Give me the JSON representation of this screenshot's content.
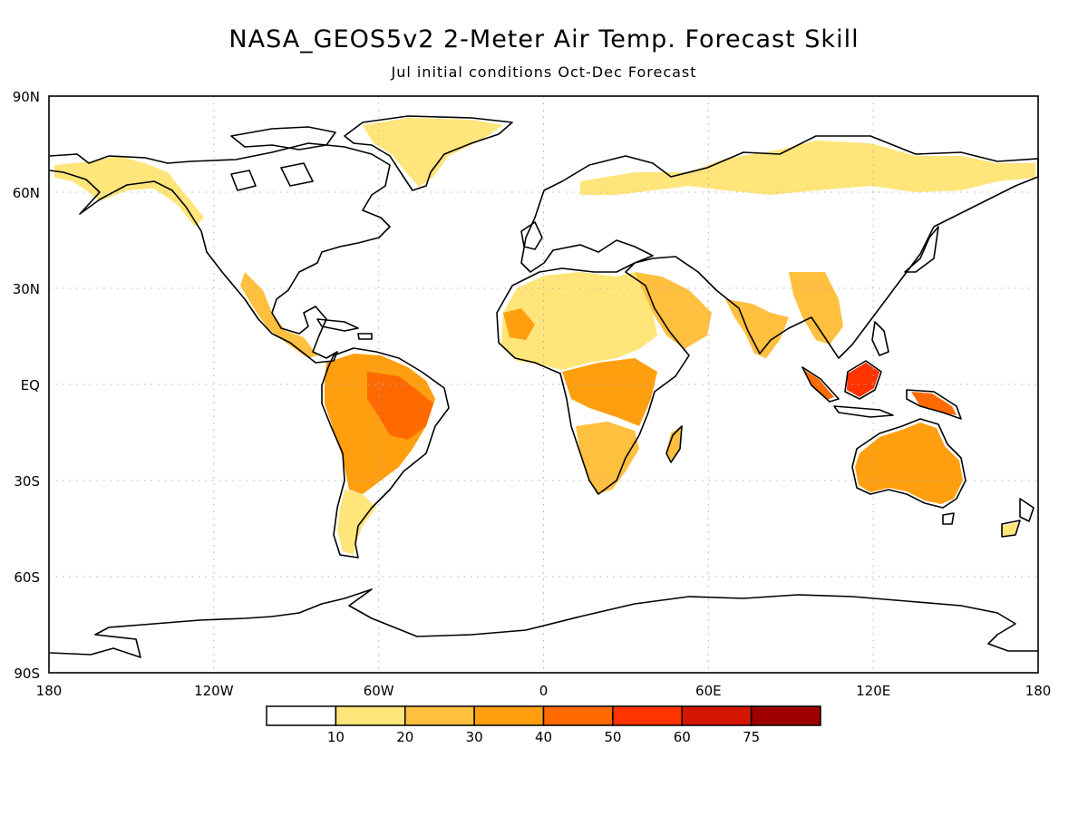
{
  "title": "NASA_GEOS5v2 2-Meter Air Temp. Forecast Skill",
  "subtitle": "Jul initial conditions  Oct-Dec Forecast",
  "map": {
    "lat_labels": [
      "90N",
      "60N",
      "30N",
      "EQ",
      "30S",
      "60S",
      "90S"
    ],
    "lon_labels": [
      "180",
      "120W",
      "60W",
      "0",
      "60E",
      "120E",
      "180"
    ],
    "grid": "dotted"
  },
  "colorbar": {
    "colors": [
      "#ffffff",
      "#ffe57a",
      "#ffbf3f",
      "#ff9f0f",
      "#ff6a00",
      "#ff3300",
      "#d41500",
      "#9e0000"
    ],
    "labels": [
      "10",
      "20",
      "30",
      "40",
      "50",
      "60",
      "75"
    ]
  },
  "skill_regions": [
    {
      "name": "alaska",
      "level": 1
    },
    {
      "name": "greenland",
      "level": 1
    },
    {
      "name": "northern-asia",
      "level": 1
    },
    {
      "name": "mexico-central-america",
      "level": 2
    },
    {
      "name": "south-america-amazon",
      "level": 3
    },
    {
      "name": "brazil-east",
      "level": 4
    },
    {
      "name": "patagonia",
      "level": 1
    },
    {
      "name": "sahara-sahel",
      "level": 1
    },
    {
      "name": "west-africa",
      "level": 3
    },
    {
      "name": "central-africa",
      "level": 3
    },
    {
      "name": "southern-africa",
      "level": 2
    },
    {
      "name": "madagascar",
      "level": 2
    },
    {
      "name": "arabia",
      "level": 2
    },
    {
      "name": "india",
      "level": 2
    },
    {
      "name": "southeast-asia",
      "level": 2
    },
    {
      "name": "borneo",
      "level": 5
    },
    {
      "name": "sumatra",
      "level": 4
    },
    {
      "name": "new-guinea",
      "level": 4
    },
    {
      "name": "australia",
      "level": 3
    },
    {
      "name": "new-zealand",
      "level": 1
    }
  ]
}
